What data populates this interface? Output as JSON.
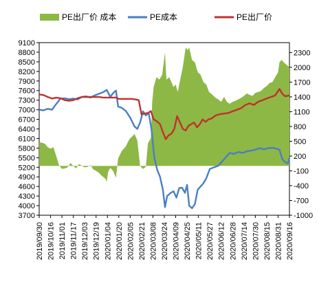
{
  "chart_data": {
    "type": "line",
    "title": "",
    "colors": {
      "spread": "#8DB845",
      "cost": "#4A7EC2",
      "price": "#C0312E"
    },
    "legend": {
      "placement": "top",
      "items": [
        {
          "key": "spread",
          "label": "PE出厂价 成本",
          "marker": "area"
        },
        {
          "key": "cost",
          "label": "PE成本",
          "marker": "line"
        },
        {
          "key": "price",
          "label": "PE出厂价",
          "marker": "line"
        }
      ]
    },
    "left_axis": {
      "ylim": [
        3700,
        9100
      ],
      "ticks": [
        "9100",
        "8800",
        "8500",
        "8200",
        "7900",
        "7600",
        "7300",
        "7000",
        "6700",
        "6400",
        "6100",
        "5800",
        "5500",
        "5200",
        "4900",
        "4600",
        "4300",
        "4000",
        "3700"
      ]
    },
    "right_axis": {
      "ylim": [
        -1000,
        2500
      ],
      "ticks": [
        "2300",
        "2000",
        "1700",
        "1400",
        "1100",
        "800",
        "500",
        "200",
        "-100",
        "-400",
        "-700",
        "-1000"
      ]
    },
    "x_axis": {
      "range": [
        "2019-09-30",
        "2020-09-16"
      ],
      "tick_labels": [
        "2019/09/30",
        "2019/10/16",
        "2019/11/01",
        "2019/11/17",
        "2019/12/03",
        "2019/12/19",
        "2020/01/04",
        "2020/01/20",
        "2020/02/05",
        "2020/02/21",
        "2020/03/08",
        "2020/03/24",
        "2020/04/09",
        "2020/04/25",
        "2020/05/11",
        "2020/05/27",
        "2020/06/12",
        "2020/06/28",
        "2020/07/14",
        "2020/07/30",
        "2020/08/15",
        "2020/08/31",
        "2020/09/16"
      ]
    },
    "series": [
      {
        "name": "PE成本",
        "key": "cost",
        "axis": "left",
        "points": [
          [
            "2019-09-30",
            7000
          ],
          [
            "2019-10-06",
            6980
          ],
          [
            "2019-10-12",
            7030
          ],
          [
            "2019-10-18",
            7000
          ],
          [
            "2019-10-24",
            7180
          ],
          [
            "2019-10-30",
            7350
          ],
          [
            "2019-11-05",
            7360
          ],
          [
            "2019-11-11",
            7330
          ],
          [
            "2019-11-17",
            7350
          ],
          [
            "2019-11-23",
            7320
          ],
          [
            "2019-11-29",
            7400
          ],
          [
            "2019-12-05",
            7420
          ],
          [
            "2019-12-11",
            7380
          ],
          [
            "2019-12-17",
            7450
          ],
          [
            "2019-12-23",
            7500
          ],
          [
            "2019-12-29",
            7550
          ],
          [
            "2020-01-03",
            7620
          ],
          [
            "2020-01-08",
            7400
          ],
          [
            "2020-01-12",
            7520
          ],
          [
            "2020-01-16",
            7600
          ],
          [
            "2020-01-19",
            7100
          ],
          [
            "2020-01-24",
            7060
          ],
          [
            "2020-01-30",
            6960
          ],
          [
            "2020-02-05",
            6750
          ],
          [
            "2020-02-11",
            6480
          ],
          [
            "2020-02-15",
            6400
          ],
          [
            "2020-02-19",
            6600
          ],
          [
            "2020-02-23",
            6950
          ],
          [
            "2020-02-27",
            6820
          ],
          [
            "2020-03-02",
            6900
          ],
          [
            "2020-03-06",
            6380
          ],
          [
            "2020-03-10",
            5500
          ],
          [
            "2020-03-14",
            5120
          ],
          [
            "2020-03-18",
            4900
          ],
          [
            "2020-03-22",
            4500
          ],
          [
            "2020-03-25",
            3950
          ],
          [
            "2020-03-28",
            4300
          ],
          [
            "2020-04-02",
            4400
          ],
          [
            "2020-04-06",
            4450
          ],
          [
            "2020-04-10",
            4250
          ],
          [
            "2020-04-14",
            4550
          ],
          [
            "2020-04-18",
            4560
          ],
          [
            "2020-04-22",
            4400
          ],
          [
            "2020-04-25",
            4650
          ],
          [
            "2020-04-28",
            4000
          ],
          [
            "2020-05-02",
            3920
          ],
          [
            "2020-05-06",
            4050
          ],
          [
            "2020-05-10",
            4500
          ],
          [
            "2020-05-14",
            4600
          ],
          [
            "2020-05-18",
            4700
          ],
          [
            "2020-05-22",
            4850
          ],
          [
            "2020-05-27",
            5150
          ],
          [
            "2020-06-02",
            5200
          ],
          [
            "2020-06-08",
            5250
          ],
          [
            "2020-06-12",
            5350
          ],
          [
            "2020-06-18",
            5500
          ],
          [
            "2020-06-24",
            5650
          ],
          [
            "2020-06-30",
            5620
          ],
          [
            "2020-07-06",
            5680
          ],
          [
            "2020-07-12",
            5650
          ],
          [
            "2020-07-18",
            5700
          ],
          [
            "2020-07-24",
            5720
          ],
          [
            "2020-07-30",
            5750
          ],
          [
            "2020-08-05",
            5800
          ],
          [
            "2020-08-11",
            5760
          ],
          [
            "2020-08-17",
            5800
          ],
          [
            "2020-08-23",
            5810
          ],
          [
            "2020-08-29",
            5780
          ],
          [
            "2020-09-02",
            5750
          ],
          [
            "2020-09-06",
            5450
          ],
          [
            "2020-09-10",
            5360
          ],
          [
            "2020-09-14",
            5320
          ],
          [
            "2020-09-16",
            5500
          ]
        ]
      },
      {
        "name": "PE出厂价",
        "key": "price",
        "axis": "left",
        "points": [
          [
            "2019-09-30",
            7480
          ],
          [
            "2019-10-06",
            7460
          ],
          [
            "2019-10-12",
            7400
          ],
          [
            "2019-10-18",
            7350
          ],
          [
            "2019-10-24",
            7380
          ],
          [
            "2019-10-30",
            7360
          ],
          [
            "2019-11-05",
            7300
          ],
          [
            "2019-11-11",
            7280
          ],
          [
            "2019-11-17",
            7300
          ],
          [
            "2019-11-23",
            7360
          ],
          [
            "2019-11-29",
            7400
          ],
          [
            "2019-12-05",
            7400
          ],
          [
            "2019-12-11",
            7400
          ],
          [
            "2019-12-17",
            7400
          ],
          [
            "2019-12-23",
            7400
          ],
          [
            "2019-12-29",
            7380
          ],
          [
            "2020-01-04",
            7380
          ],
          [
            "2020-01-10",
            7380
          ],
          [
            "2020-01-16",
            7380
          ],
          [
            "2020-01-20",
            7340
          ],
          [
            "2020-01-26",
            7340
          ],
          [
            "2020-02-01",
            7340
          ],
          [
            "2020-02-07",
            7340
          ],
          [
            "2020-02-13",
            7320
          ],
          [
            "2020-02-17",
            7300
          ],
          [
            "2020-02-21",
            6850
          ],
          [
            "2020-02-25",
            6880
          ],
          [
            "2020-03-01",
            6900
          ],
          [
            "2020-03-05",
            6960
          ],
          [
            "2020-03-09",
            6700
          ],
          [
            "2020-03-13",
            6650
          ],
          [
            "2020-03-18",
            6550
          ],
          [
            "2020-03-22",
            6300
          ],
          [
            "2020-03-26",
            6080
          ],
          [
            "2020-03-30",
            6200
          ],
          [
            "2020-04-03",
            6250
          ],
          [
            "2020-04-07",
            6400
          ],
          [
            "2020-04-11",
            6800
          ],
          [
            "2020-04-15",
            6600
          ],
          [
            "2020-04-19",
            6400
          ],
          [
            "2020-04-23",
            6350
          ],
          [
            "2020-04-27",
            6500
          ],
          [
            "2020-05-01",
            6550
          ],
          [
            "2020-05-05",
            6600
          ],
          [
            "2020-05-09",
            6450
          ],
          [
            "2020-05-13",
            6550
          ],
          [
            "2020-05-17",
            6700
          ],
          [
            "2020-05-21",
            6620
          ],
          [
            "2020-05-25",
            6700
          ],
          [
            "2020-05-29",
            6720
          ],
          [
            "2020-06-04",
            6820
          ],
          [
            "2020-06-10",
            6860
          ],
          [
            "2020-06-16",
            6880
          ],
          [
            "2020-06-22",
            6900
          ],
          [
            "2020-06-28",
            6950
          ],
          [
            "2020-07-04",
            7000
          ],
          [
            "2020-07-10",
            7050
          ],
          [
            "2020-07-16",
            7150
          ],
          [
            "2020-07-22",
            7200
          ],
          [
            "2020-07-28",
            7150
          ],
          [
            "2020-08-03",
            7250
          ],
          [
            "2020-08-09",
            7300
          ],
          [
            "2020-08-15",
            7350
          ],
          [
            "2020-08-21",
            7400
          ],
          [
            "2020-08-27",
            7450
          ],
          [
            "2020-09-02",
            7650
          ],
          [
            "2020-09-06",
            7500
          ],
          [
            "2020-09-10",
            7420
          ],
          [
            "2020-09-16",
            7450
          ]
        ]
      },
      {
        "name": "PE出厂价 成本",
        "key": "spread",
        "axis": "right",
        "type": "area",
        "points": [
          [
            "2019-09-30",
            480
          ],
          [
            "2019-10-04",
            470
          ],
          [
            "2019-10-08",
            450
          ],
          [
            "2019-10-12",
            380
          ],
          [
            "2019-10-16",
            350
          ],
          [
            "2019-10-20",
            380
          ],
          [
            "2019-10-24",
            200
          ],
          [
            "2019-10-28",
            10
          ],
          [
            "2019-11-01",
            -60
          ],
          [
            "2019-11-05",
            -50
          ],
          [
            "2019-11-09",
            -30
          ],
          [
            "2019-11-13",
            60
          ],
          [
            "2019-11-17",
            0
          ],
          [
            "2019-11-21",
            -50
          ],
          [
            "2019-11-25",
            40
          ],
          [
            "2019-11-29",
            0
          ],
          [
            "2019-12-03",
            -30
          ],
          [
            "2019-12-07",
            -20
          ],
          [
            "2019-12-11",
            20
          ],
          [
            "2019-12-15",
            -70
          ],
          [
            "2019-12-19",
            -100
          ],
          [
            "2019-12-23",
            -140
          ],
          [
            "2019-12-27",
            -200
          ],
          [
            "2020-01-01",
            -260
          ],
          [
            "2020-01-03",
            -320
          ],
          [
            "2020-01-05",
            -120
          ],
          [
            "2020-01-08",
            -40
          ],
          [
            "2020-01-12",
            -100
          ],
          [
            "2020-01-16",
            -240
          ],
          [
            "2020-01-19",
            150
          ],
          [
            "2020-01-24",
            300
          ],
          [
            "2020-01-30",
            400
          ],
          [
            "2020-02-03",
            520
          ],
          [
            "2020-02-05",
            560
          ],
          [
            "2020-02-08",
            600
          ],
          [
            "2020-02-11",
            650
          ],
          [
            "2020-02-15",
            520
          ],
          [
            "2020-02-19",
            0
          ],
          [
            "2020-02-23",
            -60
          ],
          [
            "2020-02-27",
            -20
          ],
          [
            "2020-03-01",
            460
          ],
          [
            "2020-03-05",
            560
          ],
          [
            "2020-03-07",
            1300
          ],
          [
            "2020-03-09",
            1600
          ],
          [
            "2020-03-13",
            1800
          ],
          [
            "2020-03-17",
            1750
          ],
          [
            "2020-03-21",
            1850
          ],
          [
            "2020-03-25",
            2300
          ],
          [
            "2020-03-27",
            1750
          ],
          [
            "2020-03-31",
            1800
          ],
          [
            "2020-04-03",
            1700
          ],
          [
            "2020-04-06",
            1600
          ],
          [
            "2020-04-09",
            1650
          ],
          [
            "2020-04-12",
            1500
          ],
          [
            "2020-04-16",
            1800
          ],
          [
            "2020-04-19",
            2000
          ],
          [
            "2020-04-23",
            2400
          ],
          [
            "2020-04-26",
            2350
          ],
          [
            "2020-04-28",
            2400
          ],
          [
            "2020-05-02",
            2150
          ],
          [
            "2020-05-06",
            2100
          ],
          [
            "2020-05-10",
            1900
          ],
          [
            "2020-05-14",
            1850
          ],
          [
            "2020-05-18",
            1700
          ],
          [
            "2020-05-22",
            1650
          ],
          [
            "2020-05-26",
            1500
          ],
          [
            "2020-05-30",
            1450
          ],
          [
            "2020-06-04",
            1380
          ],
          [
            "2020-06-08",
            1350
          ],
          [
            "2020-06-12",
            1300
          ],
          [
            "2020-06-16",
            1400
          ],
          [
            "2020-06-20",
            1300
          ],
          [
            "2020-06-24",
            1260
          ],
          [
            "2020-06-28",
            1300
          ],
          [
            "2020-07-02",
            1320
          ],
          [
            "2020-07-06",
            1350
          ],
          [
            "2020-07-10",
            1380
          ],
          [
            "2020-07-14",
            1420
          ],
          [
            "2020-07-18",
            1470
          ],
          [
            "2020-07-22",
            1440
          ],
          [
            "2020-07-26",
            1420
          ],
          [
            "2020-07-30",
            1480
          ],
          [
            "2020-08-03",
            1500
          ],
          [
            "2020-08-07",
            1520
          ],
          [
            "2020-08-11",
            1580
          ],
          [
            "2020-08-15",
            1620
          ],
          [
            "2020-08-19",
            1680
          ],
          [
            "2020-08-23",
            1700
          ],
          [
            "2020-08-27",
            1800
          ],
          [
            "2020-08-31",
            1900
          ],
          [
            "2020-09-02",
            2100
          ],
          [
            "2020-09-05",
            2150
          ],
          [
            "2020-09-08",
            2100
          ],
          [
            "2020-09-12",
            2050
          ],
          [
            "2020-09-16",
            2000
          ]
        ]
      }
    ]
  }
}
